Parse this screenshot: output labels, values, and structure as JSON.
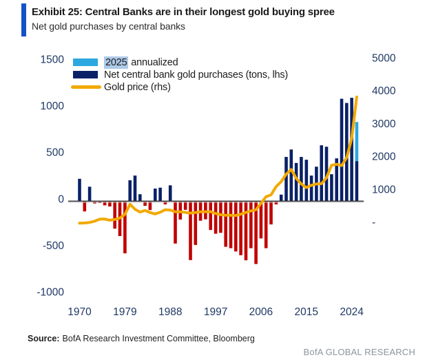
{
  "header": {
    "title": "Exhibit 25: Central Banks are in their longest gold buying spree",
    "subtitle": "Net gold purchases by central banks"
  },
  "legend": {
    "items": [
      {
        "label": "2025 annualized",
        "label_highlight": "2025",
        "label_rest": " annualized",
        "swatch": "light-blue-bar"
      },
      {
        "label": "Net central bank gold purchases (tons, lhs)",
        "swatch": "navy-bar"
      },
      {
        "label": "Gold price (rhs)",
        "swatch": "gold-line"
      }
    ]
  },
  "footer": {
    "source_label": "Source:",
    "source_text": "BofA Research Investment Committee, Bloomberg",
    "brand": "BofA GLOBAL RESEARCH"
  },
  "colors": {
    "accent_bar": "#1353C6",
    "bar_positive": "#0A2167",
    "bar_negative": "#C00000",
    "bar_annualized": "#2BA8E0",
    "gold_line": "#F2A900",
    "axis_text": "#1F3864",
    "highlight_2025": "#AEC9E8",
    "zero_line": "#3F3F3F",
    "brand_text": "#8D949C"
  },
  "chart_data": {
    "type": "bar",
    "subtype": "bar+line combo, dual axis",
    "title": "Exhibit 25: Central Banks are in their longest gold buying spree",
    "subtitle": "Net gold purchases by central banks",
    "x_start_year": 1970,
    "years": [
      1970,
      1971,
      1972,
      1973,
      1974,
      1975,
      1976,
      1977,
      1978,
      1979,
      1980,
      1981,
      1982,
      1983,
      1984,
      1985,
      1986,
      1987,
      1988,
      1989,
      1990,
      1991,
      1992,
      1993,
      1994,
      1995,
      1996,
      1997,
      1998,
      1999,
      2000,
      2001,
      2002,
      2003,
      2004,
      2005,
      2006,
      2007,
      2008,
      2009,
      2010,
      2011,
      2012,
      2013,
      2014,
      2015,
      2016,
      2017,
      2018,
      2019,
      2020,
      2021,
      2022,
      2023,
      2024,
      2025
    ],
    "series": [
      {
        "name": "Net central bank gold purchases (tons, lhs)",
        "type": "bar",
        "axis": "left",
        "values": [
          240,
          -110,
          155,
          -25,
          -20,
          -45,
          -57,
          -295,
          -375,
          -560,
          225,
          275,
          75,
          -50,
          -95,
          135,
          145,
          -35,
          170,
          -455,
          -197,
          -93,
          -633,
          -470,
          -210,
          -195,
          -310,
          -350,
          -340,
          -490,
          -505,
          -540,
          -580,
          -635,
          -505,
          -675,
          -400,
          -505,
          -250,
          -35,
          70,
          475,
          555,
          410,
          475,
          445,
          275,
          370,
          600,
          585,
          290,
          460,
          1100,
          1055,
          1110,
          430
        ]
      },
      {
        "name": "2025 annualized",
        "type": "bar_segment",
        "axis": "left",
        "year": 2025,
        "from": 430,
        "to": 850
      },
      {
        "name": "Gold price (rhs)",
        "type": "line",
        "axis": "right",
        "values": [
          36,
          41,
          58,
          97,
          159,
          161,
          125,
          148,
          193,
          307,
          612,
          460,
          376,
          424,
          361,
          317,
          368,
          446,
          437,
          381,
          384,
          362,
          344,
          360,
          384,
          384,
          388,
          331,
          294,
          279,
          279,
          271,
          310,
          363,
          410,
          445,
          640,
          840,
          900,
          1150,
          1300,
          1530,
          1670,
          1400,
          1230,
          1120,
          1190,
          1230,
          1240,
          1420,
          1800,
          1830,
          1790,
          2030,
          2620,
          3880
        ]
      }
    ],
    "left_axis": {
      "ticks": [
        1500,
        1000,
        500,
        0,
        -500,
        -1000
      ],
      "range": [
        -1100,
        1560
      ],
      "units": "tons"
    },
    "right_axis": {
      "ticks": [
        {
          "label": "5000",
          "value": 5000
        },
        {
          "label": "4000",
          "value": 4000
        },
        {
          "label": "3000",
          "value": 3000
        },
        {
          "label": "2000",
          "value": 2000
        },
        {
          "label": "1000",
          "value": 1000
        },
        {
          "label": "-",
          "value": 0
        }
      ],
      "units": "USD/oz"
    },
    "x_ticks": [
      1970,
      1979,
      1988,
      1997,
      2006,
      2015,
      2024
    ],
    "grid": false,
    "legend_position": "top-left-inside"
  }
}
